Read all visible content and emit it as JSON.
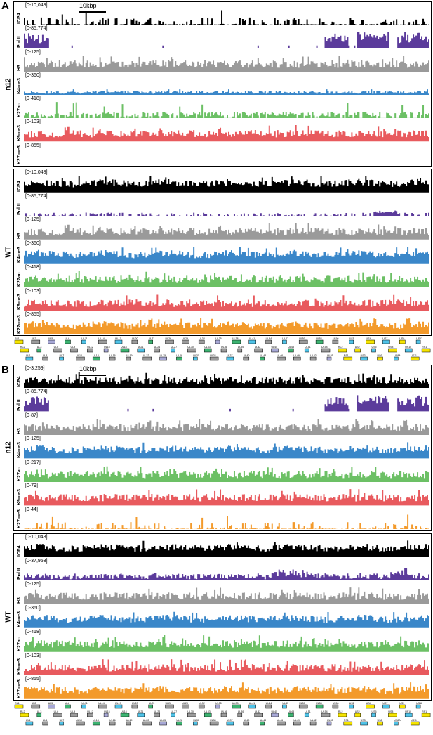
{
  "panels": [
    {
      "letter": "A",
      "scalebar": "10kbp",
      "groups": [
        {
          "condition": "n12",
          "tracks": [
            {
              "name": "ICP4",
              "range": "[0-10,048]",
              "color": "#000000",
              "profile": "sparse"
            },
            {
              "name": "Pol II",
              "range": "[0-85,774]",
              "color": "#5b3b9b",
              "profile": "polII_n12"
            },
            {
              "name": "H3",
              "range": "[0-125]",
              "color": "#9a9a9a",
              "profile": "dense"
            },
            {
              "name": "K4me3",
              "range": "[0-360]",
              "color": "#3a87c9",
              "profile": "low"
            },
            {
              "name": "K27ac",
              "range": "[0-418]",
              "color": "#6cc065",
              "profile": "medium"
            },
            {
              "name": "K9me3",
              "range": "[0-103]",
              "color": "#e85a5e",
              "profile": "dense"
            },
            {
              "name": "K27me3",
              "range": "[0-855]",
              "color": "#f39a2b",
              "profile": "empty"
            }
          ]
        },
        {
          "condition": "WT",
          "tracks": [
            {
              "name": "ICP4",
              "range": "[0-10,048]",
              "color": "#000000",
              "profile": "full"
            },
            {
              "name": "Pol II",
              "range": "[0-85,774]",
              "color": "#5b3b9b",
              "profile": "polII_wt"
            },
            {
              "name": "H3",
              "range": "[0-125]",
              "color": "#9a9a9a",
              "profile": "dense"
            },
            {
              "name": "K4me3",
              "range": "[0-360]",
              "color": "#3a87c9",
              "profile": "full"
            },
            {
              "name": "K27ac",
              "range": "[0-418]",
              "color": "#6cc065",
              "profile": "dense"
            },
            {
              "name": "K9me3",
              "range": "[0-103]",
              "color": "#e85a5e",
              "profile": "dense"
            },
            {
              "name": "K27me3",
              "range": "[0-855]",
              "color": "#f39a2b",
              "profile": "full"
            }
          ]
        }
      ]
    },
    {
      "letter": "B",
      "scalebar": "10kbp",
      "groups": [
        {
          "condition": "n12",
          "tracks": [
            {
              "name": "ICP4",
              "range": "[0-3,259]",
              "color": "#000000",
              "profile": "dense"
            },
            {
              "name": "Pol II",
              "range": "[0-85,774]",
              "color": "#5b3b9b",
              "profile": "polII_n12"
            },
            {
              "name": "H3",
              "range": "[0-87]",
              "color": "#9a9a9a",
              "profile": "dense"
            },
            {
              "name": "K4me3",
              "range": "[0-125]",
              "color": "#3a87c9",
              "profile": "full"
            },
            {
              "name": "K27ac",
              "range": "[0-217]",
              "color": "#6cc065",
              "profile": "dense"
            },
            {
              "name": "K9me3",
              "range": "[0-79]",
              "color": "#e85a5e",
              "profile": "dense"
            },
            {
              "name": "K27me3",
              "range": "[0-44]",
              "color": "#f39a2b",
              "profile": "sparse"
            }
          ]
        },
        {
          "condition": "WT",
          "tracks": [
            {
              "name": "ICP4",
              "range": "[0-10,048]",
              "color": "#000000",
              "profile": "full"
            },
            {
              "name": "Pol II",
              "range": "[0-37,953]",
              "color": "#5b3b9b",
              "profile": "polII_wt2"
            },
            {
              "name": "H3",
              "range": "[0-125]",
              "color": "#9a9a9a",
              "profile": "dense"
            },
            {
              "name": "K4me3",
              "range": "[0-360]",
              "color": "#3a87c9",
              "profile": "full"
            },
            {
              "name": "K27ac",
              "range": "[0-418]",
              "color": "#6cc065",
              "profile": "dense"
            },
            {
              "name": "K9me3",
              "range": "[0-103]",
              "color": "#e85a5e",
              "profile": "dense"
            },
            {
              "name": "K27me3",
              "range": "[0-855]",
              "color": "#f39a2b",
              "profile": "full"
            }
          ]
        }
      ]
    }
  ],
  "gene_labels": [
    "RL1",
    "RL2",
    "UL1",
    "UL2",
    "UL3",
    "UL4",
    "UL5",
    "UL6",
    "UL7",
    "UL8",
    "UL9",
    "UL10",
    "UL11",
    "UL12",
    "UL13",
    "UL14",
    "UL15",
    "UL16",
    "UL17",
    "UL18",
    "UL19",
    "UL20",
    "UL21",
    "UL22",
    "UL23",
    "UL24",
    "UL25",
    "UL26",
    "UL27",
    "UL28",
    "UL29",
    "UL30",
    "UL31",
    "UL32",
    "UL33",
    "UL34",
    "UL35",
    "UL36",
    "UL37",
    "UL38",
    "UL39",
    "UL40",
    "UL41",
    "UL42",
    "UL43",
    "UL44",
    "UL45",
    "UL46",
    "UL47",
    "UL48",
    "UL49",
    "UL50",
    "UL51",
    "UL52",
    "UL53",
    "UL54",
    "UL55",
    "UL56",
    "RL2",
    "RS1",
    "US1",
    "US2",
    "US3",
    "US4",
    "US5",
    "US6",
    "US7",
    "US8",
    "US8A",
    "US9",
    "US10",
    "US11",
    "US12",
    "RS1"
  ],
  "gene_colors": {
    "grey": "#9b9b9b",
    "cyan": "#4fc3e8",
    "green": "#3cb371",
    "lavender": "#a7a8d6",
    "yellow": "#f5e400"
  }
}
